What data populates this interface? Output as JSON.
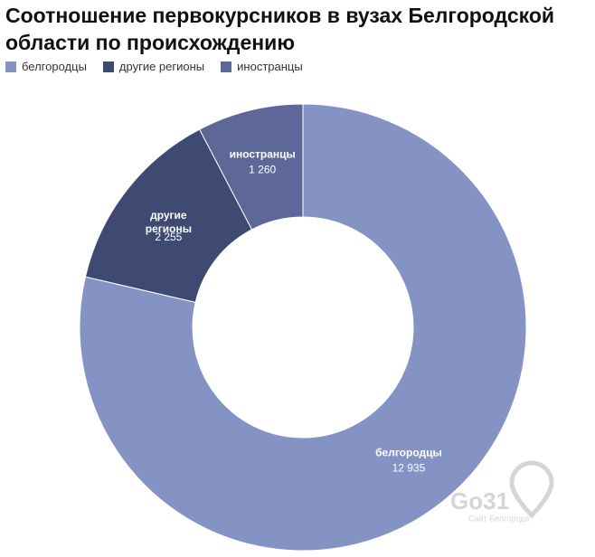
{
  "chart_data": {
    "type": "donut",
    "title": "Соотношение первокурсников в вузах Белгородской области по происхождению",
    "categories": [
      "белгородцы",
      "другие регионы",
      "иностранцы"
    ],
    "values": [
      12935,
      2255,
      1260
    ],
    "value_labels": [
      "12 935",
      "2 255",
      "1 260"
    ],
    "colors": [
      "#8592c4",
      "#3f4a72",
      "#5e6898"
    ],
    "legend": "top-left"
  },
  "watermark": {
    "logo": "Go31",
    "caption": "Сайт Белгорода"
  }
}
